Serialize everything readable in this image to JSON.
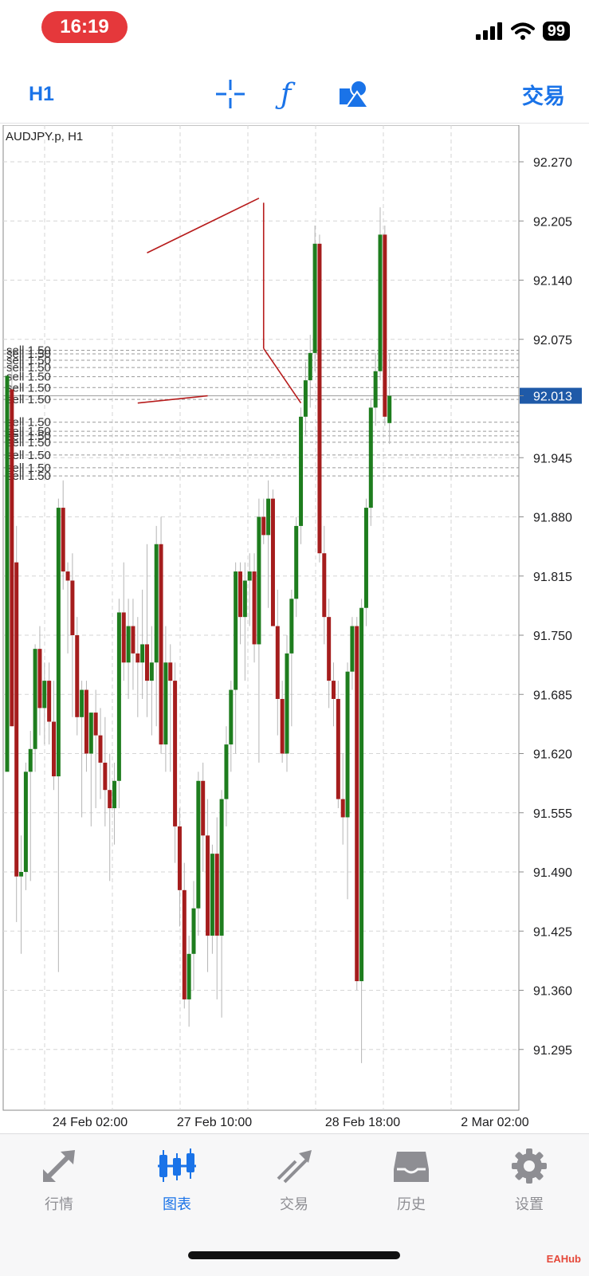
{
  "status": {
    "time": "16:19",
    "battery": "99"
  },
  "toolbar": {
    "timeframe": "H1",
    "trade_label": "交易",
    "icons": [
      "crosshair-icon",
      "function-icon",
      "objects-icon"
    ]
  },
  "chart": {
    "symbol": "AUDJPY.p, H1",
    "y_ticks": [
      "92.270",
      "92.205",
      "92.140",
      "92.075",
      "92.013",
      "91.945",
      "91.880",
      "91.815",
      "91.750",
      "91.685",
      "91.620",
      "91.555",
      "91.490",
      "91.425",
      "91.360",
      "91.295"
    ],
    "x_ticks": [
      "24 Feb 02:00",
      "27 Feb 10:00",
      "28 Feb 18:00",
      "2 Mar 02:00"
    ],
    "current_price": "92.013",
    "order_label": "sell 1.50",
    "colors": {
      "bull": "#1e7d1e",
      "bear": "#a51d1d",
      "drawing": "#b71c1c",
      "price_badge": "#1f5aa8"
    }
  },
  "chart_data": {
    "type": "candlestick",
    "title": "AUDJPY.p, H1",
    "ylim": [
      91.23,
      92.31
    ],
    "y_ticks": [
      92.27,
      92.205,
      92.14,
      92.075,
      91.945,
      91.88,
      91.815,
      91.75,
      91.685,
      91.62,
      91.555,
      91.49,
      91.425,
      91.36,
      91.295
    ],
    "x_labels": [
      "24 Feb 02:00",
      "27 Feb 10:00",
      "28 Feb 18:00",
      "2 Mar 02:00"
    ],
    "current_price": 92.013,
    "sell_orders": [
      {
        "label": "sell 1.50",
        "price": 92.063
      },
      {
        "label": "sell 1.50",
        "price": 92.059
      },
      {
        "label": "sell 1.50",
        "price": 92.052
      },
      {
        "label": "sell 1.50",
        "price": 92.044
      },
      {
        "label": "sell 1.50",
        "price": 92.034
      },
      {
        "label": "sell 1.50",
        "price": 92.022
      },
      {
        "label": "sell 1.50",
        "price": 92.009
      },
      {
        "label": "sell 1.50",
        "price": 91.984
      },
      {
        "label": "sell 1.50",
        "price": 91.974
      },
      {
        "label": "sell 1.50",
        "price": 91.969
      },
      {
        "label": "sell 1.50",
        "price": 91.962
      },
      {
        "label": "sell 1.50",
        "price": 91.948
      },
      {
        "label": "sell 1.50",
        "price": 91.934
      },
      {
        "label": "sell 1.50",
        "price": 91.925
      }
    ],
    "candles": [
      {
        "o": 91.6,
        "h": 92.035,
        "l": 91.605,
        "c": 92.035
      },
      {
        "o": 92.02,
        "h": 92.05,
        "l": 91.65,
        "c": 91.65
      },
      {
        "o": 91.83,
        "h": 91.87,
        "l": 91.435,
        "c": 91.485
      },
      {
        "o": 91.485,
        "h": 91.53,
        "l": 91.4,
        "c": 91.49
      },
      {
        "o": 91.49,
        "h": 91.61,
        "l": 91.47,
        "c": 91.6
      },
      {
        "o": 91.6,
        "h": 91.645,
        "l": 91.48,
        "c": 91.625
      },
      {
        "o": 91.625,
        "h": 91.74,
        "l": 91.6,
        "c": 91.735
      },
      {
        "o": 91.735,
        "h": 91.76,
        "l": 91.64,
        "c": 91.67
      },
      {
        "o": 91.67,
        "h": 91.72,
        "l": 91.63,
        "c": 91.7
      },
      {
        "o": 91.7,
        "h": 91.72,
        "l": 91.63,
        "c": 91.655
      },
      {
        "o": 91.655,
        "h": 91.7,
        "l": 91.58,
        "c": 91.595
      },
      {
        "o": 91.595,
        "h": 91.9,
        "l": 91.38,
        "c": 91.89
      },
      {
        "o": 91.89,
        "h": 91.92,
        "l": 91.8,
        "c": 91.82
      },
      {
        "o": 91.82,
        "h": 91.83,
        "l": 91.73,
        "c": 91.81
      },
      {
        "o": 91.81,
        "h": 91.84,
        "l": 91.66,
        "c": 91.75
      },
      {
        "o": 91.75,
        "h": 91.77,
        "l": 91.64,
        "c": 91.66
      },
      {
        "o": 91.66,
        "h": 91.7,
        "l": 91.55,
        "c": 91.69
      },
      {
        "o": 91.69,
        "h": 91.7,
        "l": 91.6,
        "c": 91.62
      },
      {
        "o": 91.62,
        "h": 91.66,
        "l": 91.54,
        "c": 91.665
      },
      {
        "o": 91.665,
        "h": 91.69,
        "l": 91.56,
        "c": 91.64
      },
      {
        "o": 91.64,
        "h": 91.67,
        "l": 91.57,
        "c": 91.61
      },
      {
        "o": 91.61,
        "h": 91.66,
        "l": 91.54,
        "c": 91.58
      },
      {
        "o": 91.58,
        "h": 91.62,
        "l": 91.48,
        "c": 91.56
      },
      {
        "o": 91.56,
        "h": 91.61,
        "l": 91.52,
        "c": 91.59
      },
      {
        "o": 91.59,
        "h": 91.79,
        "l": 91.56,
        "c": 91.775
      },
      {
        "o": 91.775,
        "h": 91.83,
        "l": 91.7,
        "c": 91.72
      },
      {
        "o": 91.72,
        "h": 91.79,
        "l": 91.68,
        "c": 91.76
      },
      {
        "o": 91.76,
        "h": 91.79,
        "l": 91.69,
        "c": 91.73
      },
      {
        "o": 91.73,
        "h": 91.77,
        "l": 91.66,
        "c": 91.72
      },
      {
        "o": 91.72,
        "h": 91.8,
        "l": 91.68,
        "c": 91.74
      },
      {
        "o": 91.74,
        "h": 91.85,
        "l": 91.66,
        "c": 91.7
      },
      {
        "o": 91.7,
        "h": 91.76,
        "l": 91.64,
        "c": 91.72
      },
      {
        "o": 91.72,
        "h": 91.87,
        "l": 91.65,
        "c": 91.85
      },
      {
        "o": 91.85,
        "h": 91.88,
        "l": 91.62,
        "c": 91.63
      },
      {
        "o": 91.63,
        "h": 91.76,
        "l": 91.6,
        "c": 91.72
      },
      {
        "o": 91.72,
        "h": 91.74,
        "l": 91.6,
        "c": 91.7
      },
      {
        "o": 91.7,
        "h": 91.72,
        "l": 91.5,
        "c": 91.54
      },
      {
        "o": 91.54,
        "h": 91.56,
        "l": 91.43,
        "c": 91.47
      },
      {
        "o": 91.47,
        "h": 91.5,
        "l": 91.34,
        "c": 91.35
      },
      {
        "o": 91.35,
        "h": 91.42,
        "l": 91.32,
        "c": 91.4
      },
      {
        "o": 91.4,
        "h": 91.48,
        "l": 91.36,
        "c": 91.45
      },
      {
        "o": 91.45,
        "h": 91.6,
        "l": 91.42,
        "c": 91.59
      },
      {
        "o": 91.59,
        "h": 91.61,
        "l": 91.49,
        "c": 91.53
      },
      {
        "o": 91.53,
        "h": 91.57,
        "l": 91.38,
        "c": 91.42
      },
      {
        "o": 91.42,
        "h": 91.52,
        "l": 91.4,
        "c": 91.51
      },
      {
        "o": 91.51,
        "h": 91.55,
        "l": 91.35,
        "c": 91.42
      },
      {
        "o": 91.42,
        "h": 91.58,
        "l": 91.33,
        "c": 91.57
      },
      {
        "o": 91.57,
        "h": 91.65,
        "l": 91.54,
        "c": 91.63
      },
      {
        "o": 91.63,
        "h": 91.7,
        "l": 91.6,
        "c": 91.69
      },
      {
        "o": 91.69,
        "h": 91.83,
        "l": 91.62,
        "c": 91.82
      },
      {
        "o": 91.82,
        "h": 91.83,
        "l": 91.74,
        "c": 91.77
      },
      {
        "o": 91.77,
        "h": 91.83,
        "l": 91.7,
        "c": 91.81
      },
      {
        "o": 91.81,
        "h": 91.84,
        "l": 91.76,
        "c": 91.82
      },
      {
        "o": 91.82,
        "h": 91.84,
        "l": 91.72,
        "c": 91.74
      },
      {
        "o": 91.74,
        "h": 91.9,
        "l": 91.61,
        "c": 91.88
      },
      {
        "o": 91.88,
        "h": 91.9,
        "l": 91.85,
        "c": 91.86
      },
      {
        "o": 91.86,
        "h": 91.92,
        "l": 91.78,
        "c": 91.9
      },
      {
        "o": 91.9,
        "h": 91.91,
        "l": 91.77,
        "c": 91.76
      },
      {
        "o": 91.76,
        "h": 91.8,
        "l": 91.64,
        "c": 91.68
      },
      {
        "o": 91.68,
        "h": 91.7,
        "l": 91.61,
        "c": 91.62
      },
      {
        "o": 91.62,
        "h": 91.75,
        "l": 91.6,
        "c": 91.73
      },
      {
        "o": 91.73,
        "h": 91.8,
        "l": 91.65,
        "c": 91.79
      },
      {
        "o": 91.79,
        "h": 91.88,
        "l": 91.77,
        "c": 91.87
      },
      {
        "o": 91.87,
        "h": 92.0,
        "l": 91.85,
        "c": 91.99
      },
      {
        "o": 91.99,
        "h": 92.05,
        "l": 91.97,
        "c": 92.03
      },
      {
        "o": 92.03,
        "h": 92.08,
        "l": 92.0,
        "c": 92.06
      },
      {
        "o": 92.06,
        "h": 92.2,
        "l": 92.04,
        "c": 92.18
      },
      {
        "o": 92.18,
        "h": 92.19,
        "l": 91.83,
        "c": 91.84
      },
      {
        "o": 91.84,
        "h": 91.87,
        "l": 91.74,
        "c": 91.77
      },
      {
        "o": 91.77,
        "h": 91.79,
        "l": 91.67,
        "c": 91.7
      },
      {
        "o": 91.7,
        "h": 91.72,
        "l": 91.65,
        "c": 91.68
      },
      {
        "o": 91.68,
        "h": 91.7,
        "l": 91.56,
        "c": 91.57
      },
      {
        "o": 91.57,
        "h": 91.62,
        "l": 91.52,
        "c": 91.55
      },
      {
        "o": 91.55,
        "h": 91.72,
        "l": 91.46,
        "c": 91.71
      },
      {
        "o": 91.71,
        "h": 91.77,
        "l": 91.69,
        "c": 91.76
      },
      {
        "o": 91.76,
        "h": 91.77,
        "l": 91.36,
        "c": 91.37
      },
      {
        "o": 91.37,
        "h": 91.79,
        "l": 91.28,
        "c": 91.78
      },
      {
        "o": 91.78,
        "h": 91.9,
        "l": 91.76,
        "c": 91.89
      },
      {
        "o": 91.89,
        "h": 92.01,
        "l": 91.87,
        "c": 92.0
      },
      {
        "o": 92.0,
        "h": 92.06,
        "l": 91.98,
        "c": 92.04
      },
      {
        "o": 92.04,
        "h": 92.22,
        "l": 92.03,
        "c": 92.19
      },
      {
        "o": 92.19,
        "h": 92.2,
        "l": 91.98,
        "c": 91.99
      },
      {
        "o": 91.983,
        "h": 92.06,
        "l": 91.96,
        "c": 92.013
      }
    ],
    "trendlines": [
      {
        "from": {
          "bar": 30,
          "price": 92.17
        },
        "to": {
          "bar": 54,
          "price": 92.23
        }
      },
      {
        "from": {
          "bar": 28,
          "price": 92.005
        },
        "to": {
          "bar": 43,
          "price": 92.013
        }
      },
      {
        "from": {
          "bar": 55,
          "price": 92.225
        },
        "to": {
          "bar": 55,
          "price": 92.065
        }
      },
      {
        "from": {
          "bar": 55,
          "price": 92.065
        },
        "to": {
          "bar": 63,
          "price": 92.005
        }
      }
    ]
  },
  "tabs": [
    {
      "label": "行情",
      "icon": "quotes-arrows-icon"
    },
    {
      "label": "图表",
      "icon": "chart-candles-icon"
    },
    {
      "label": "交易",
      "icon": "trade-trend-icon"
    },
    {
      "label": "历史",
      "icon": "history-inbox-icon"
    },
    {
      "label": "设置",
      "icon": "settings-gear-icon"
    }
  ],
  "watermark": "EAHub"
}
